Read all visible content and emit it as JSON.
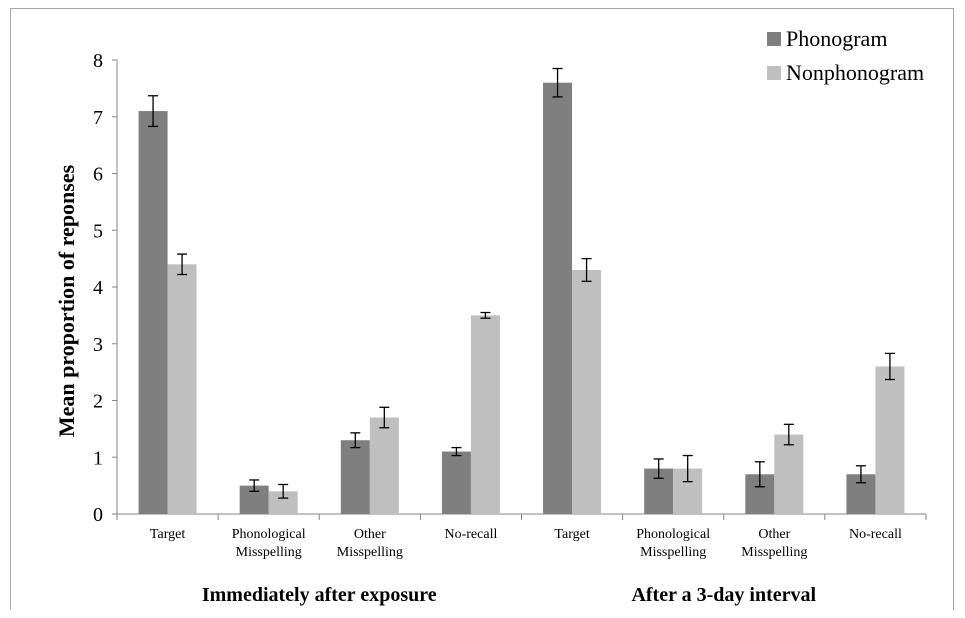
{
  "chart_data": {
    "type": "bar",
    "ylabel": "Mean proportion of reponses",
    "ylim": [
      0,
      8
    ],
    "yticks": [
      0,
      1,
      2,
      3,
      4,
      5,
      6,
      7,
      8
    ],
    "grid": false,
    "legend_position": "top-right",
    "groups": [
      {
        "label": "Immediately after exposure",
        "categories": [
          "Target",
          "Phonological Misspelling",
          "Other Misspelling",
          "No-recall"
        ]
      },
      {
        "label": "After a 3-day interval",
        "categories": [
          "Target",
          "Phonological Misspelling",
          "Other Misspelling",
          "No-recall"
        ]
      }
    ],
    "categories": [
      [
        "Target"
      ],
      [
        "Phonological",
        "Misspelling"
      ],
      [
        "Other",
        "Misspelling"
      ],
      [
        "No-recall"
      ],
      [
        "Target"
      ],
      [
        "Phonological",
        "Misspelling"
      ],
      [
        "Other",
        "Misspelling"
      ],
      [
        "No-recall"
      ]
    ],
    "series": [
      {
        "name": "Phonogram",
        "color": "#7f7f7f",
        "values": [
          7.1,
          0.5,
          1.3,
          1.1,
          7.6,
          0.8,
          0.7,
          0.7
        ],
        "errors": [
          0.27,
          0.1,
          0.13,
          0.07,
          0.25,
          0.17,
          0.22,
          0.15
        ]
      },
      {
        "name": "Nonphonogram",
        "color": "#bfbfbf",
        "values": [
          4.4,
          0.4,
          1.7,
          3.5,
          4.3,
          0.8,
          1.4,
          2.6
        ],
        "errors": [
          0.18,
          0.12,
          0.18,
          0.05,
          0.2,
          0.23,
          0.18,
          0.23
        ]
      }
    ]
  }
}
